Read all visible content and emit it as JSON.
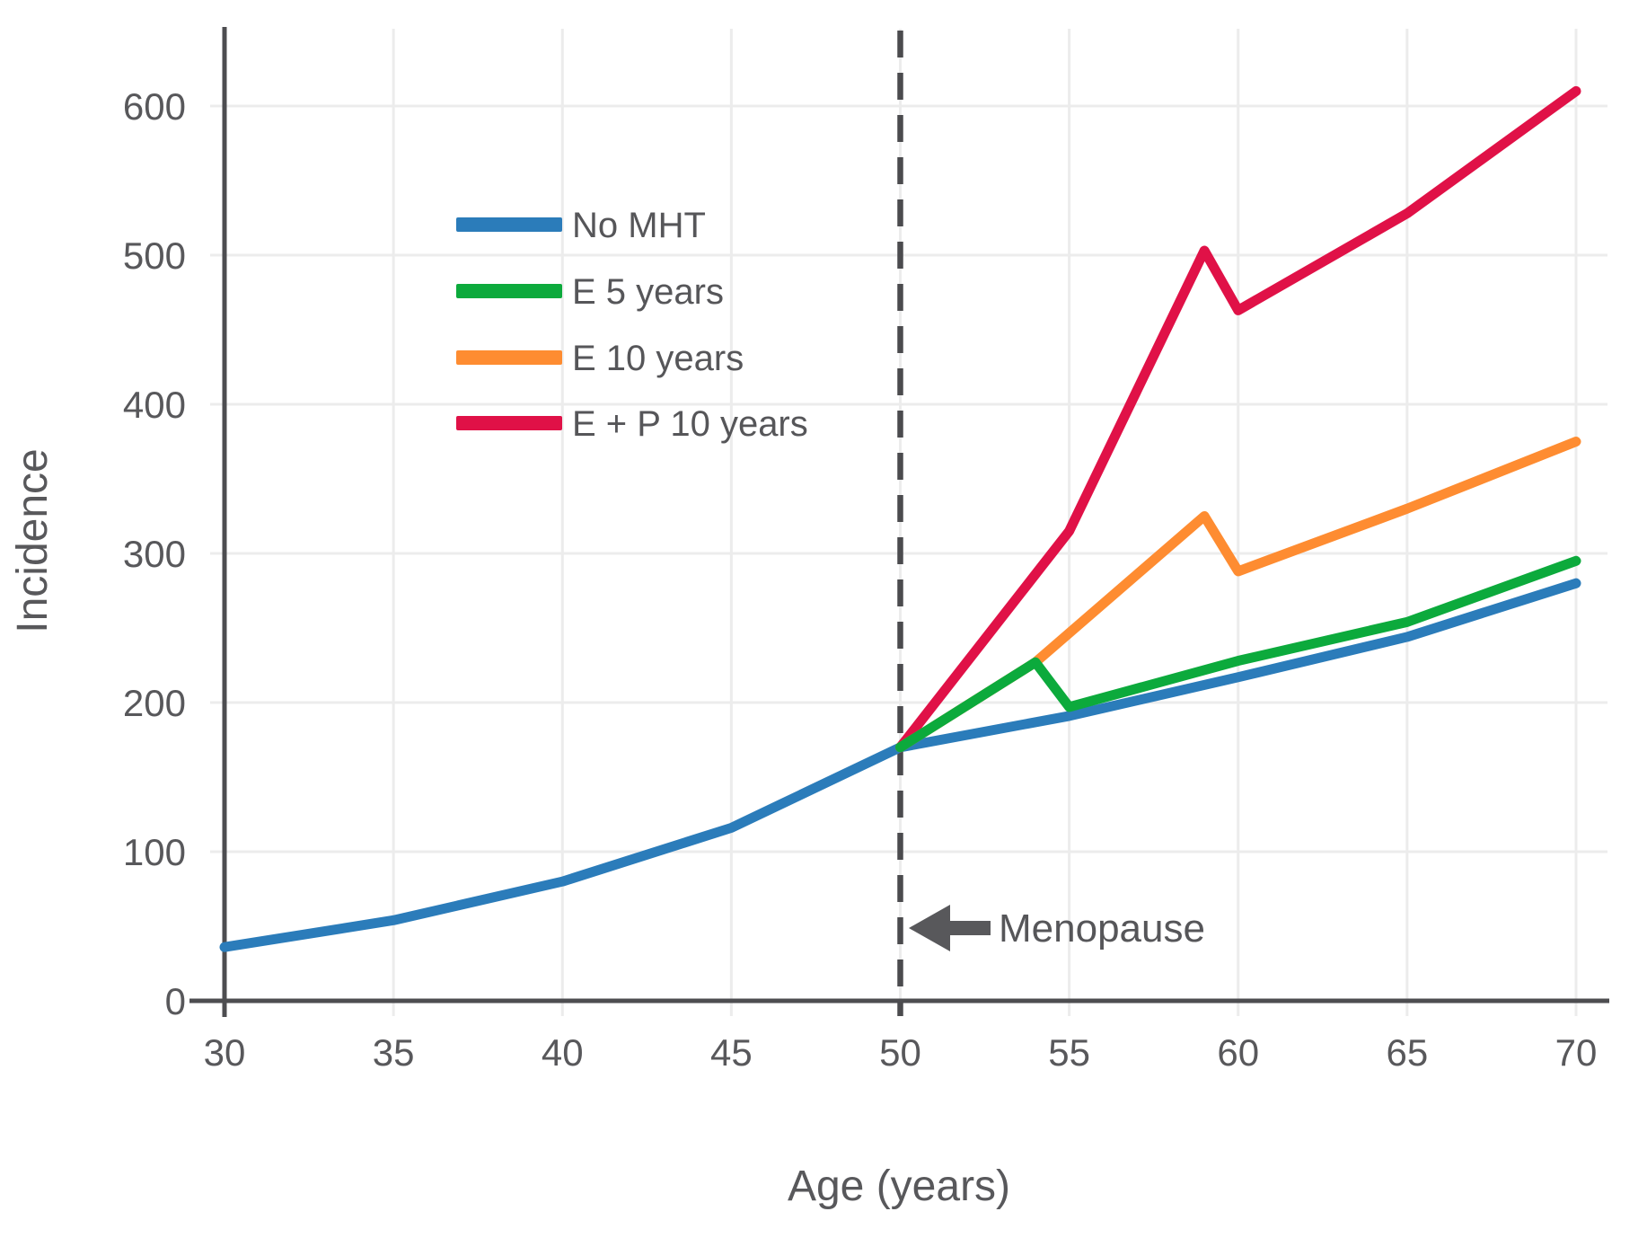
{
  "chart_data": {
    "type": "line",
    "title": "",
    "xlabel": "Age (years)",
    "ylabel": "Incidence",
    "xlim": [
      29,
      71
    ],
    "ylim": [
      0,
      650
    ],
    "x_ticks": [
      30,
      35,
      40,
      45,
      50,
      55,
      60,
      65,
      70
    ],
    "y_ticks": [
      0,
      100,
      200,
      300,
      400,
      500,
      600
    ],
    "grid": true,
    "legend_position": "upper-left-inside",
    "series": [
      {
        "name": "No MHT",
        "color": "#2b7cba",
        "x": [
          30,
          35,
          40,
          45,
          50,
          55,
          60,
          65,
          70
        ],
        "y": [
          36,
          54,
          80,
          116,
          170,
          191,
          217,
          244,
          280
        ]
      },
      {
        "name": "E 5 years",
        "color": "#0caa3c",
        "x": [
          50,
          54,
          55,
          60,
          65,
          70
        ],
        "y": [
          170,
          227,
          197,
          228,
          254,
          295
        ]
      },
      {
        "name": "E 10 years",
        "color": "#fe8c31",
        "x": [
          50,
          54,
          59,
          60,
          65,
          70
        ],
        "y": [
          170,
          227,
          325,
          288,
          330,
          375
        ]
      },
      {
        "name": "E + P 10 years",
        "color": "#e01147",
        "x": [
          50,
          55,
          59,
          60,
          65,
          70
        ],
        "y": [
          170,
          315,
          503,
          463,
          528,
          610
        ]
      }
    ],
    "vline": {
      "x": 50,
      "style": "dashed",
      "color": "#4b4b4e"
    },
    "annotation": {
      "label": "Menopause",
      "x": 50,
      "y": 49,
      "arrow": "left"
    },
    "colors": {
      "axis": "#4d4d50",
      "grid": "#ececec",
      "text": "#58585b",
      "background": "#ffffff"
    }
  }
}
